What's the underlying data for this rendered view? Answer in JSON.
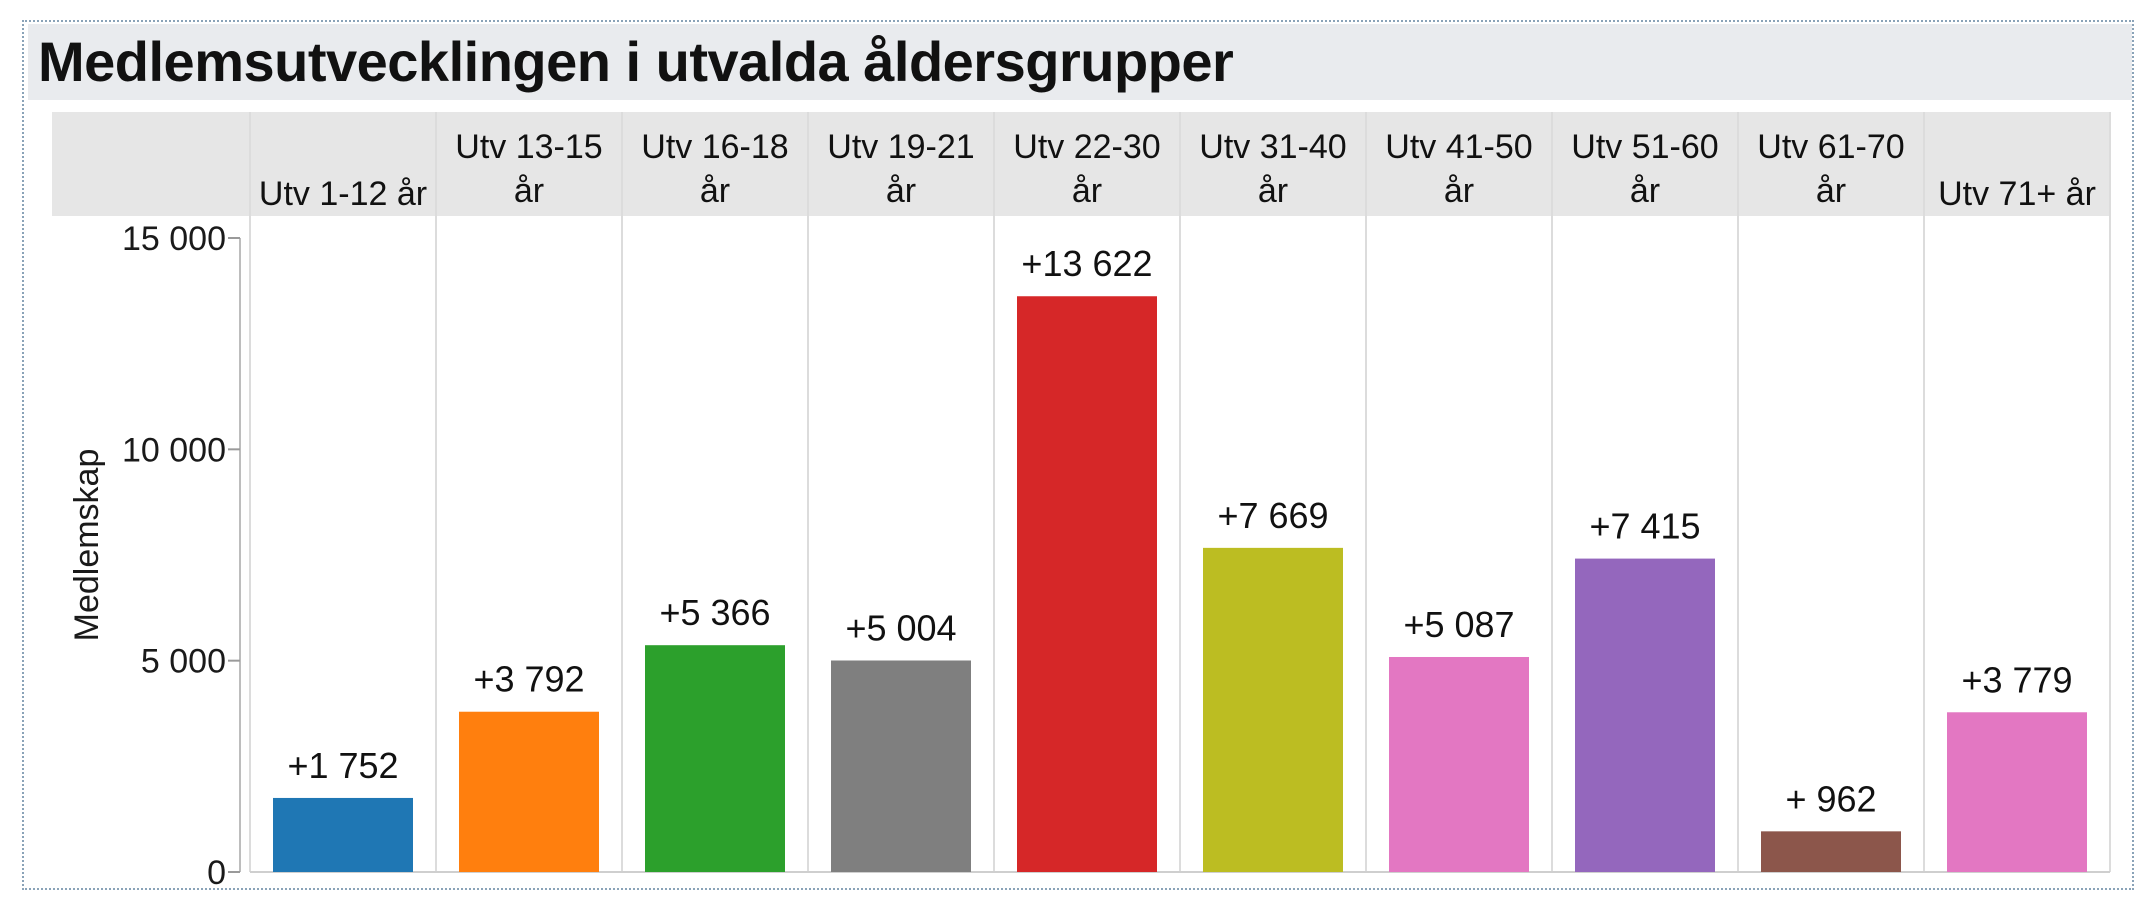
{
  "chart_data": {
    "type": "bar",
    "title": "Medlemsutvecklingen i utvalda åldersgrupper",
    "ylabel": "Medlemskap",
    "ylim": [
      0,
      15000
    ],
    "yticks": [
      0,
      5000,
      10000,
      15000
    ],
    "ytick_labels": [
      "0",
      "5 000",
      "10 000",
      "15 000"
    ],
    "categories": [
      [
        "Utv 1-12 år"
      ],
      [
        "Utv 13-15",
        "år"
      ],
      [
        "Utv 16-18",
        "år"
      ],
      [
        "Utv 19-21",
        "år"
      ],
      [
        "Utv 22-30",
        "år"
      ],
      [
        "Utv 31-40",
        "år"
      ],
      [
        "Utv 41-50",
        "år"
      ],
      [
        "Utv 51-60",
        "år"
      ],
      [
        "Utv 61-70",
        "år"
      ],
      [
        "Utv 71+ år"
      ]
    ],
    "values": [
      1752,
      3792,
      5366,
      5004,
      13622,
      7669,
      5087,
      7415,
      962,
      3779
    ],
    "data_labels": [
      "+1 752",
      "+3 792",
      "+5 366",
      "+5 004",
      "+13 622",
      "+7 669",
      "+5 087",
      "+7 415",
      "+ 962",
      "+3 779"
    ],
    "colors": [
      "#1f77b4",
      "#ff7f0e",
      "#2ca02c",
      "#7f7f7f",
      "#d62728",
      "#bcbd22",
      "#e377c2",
      "#9467bd",
      "#8c564b",
      "#e377c2"
    ],
    "grid": false,
    "legend": "none"
  }
}
